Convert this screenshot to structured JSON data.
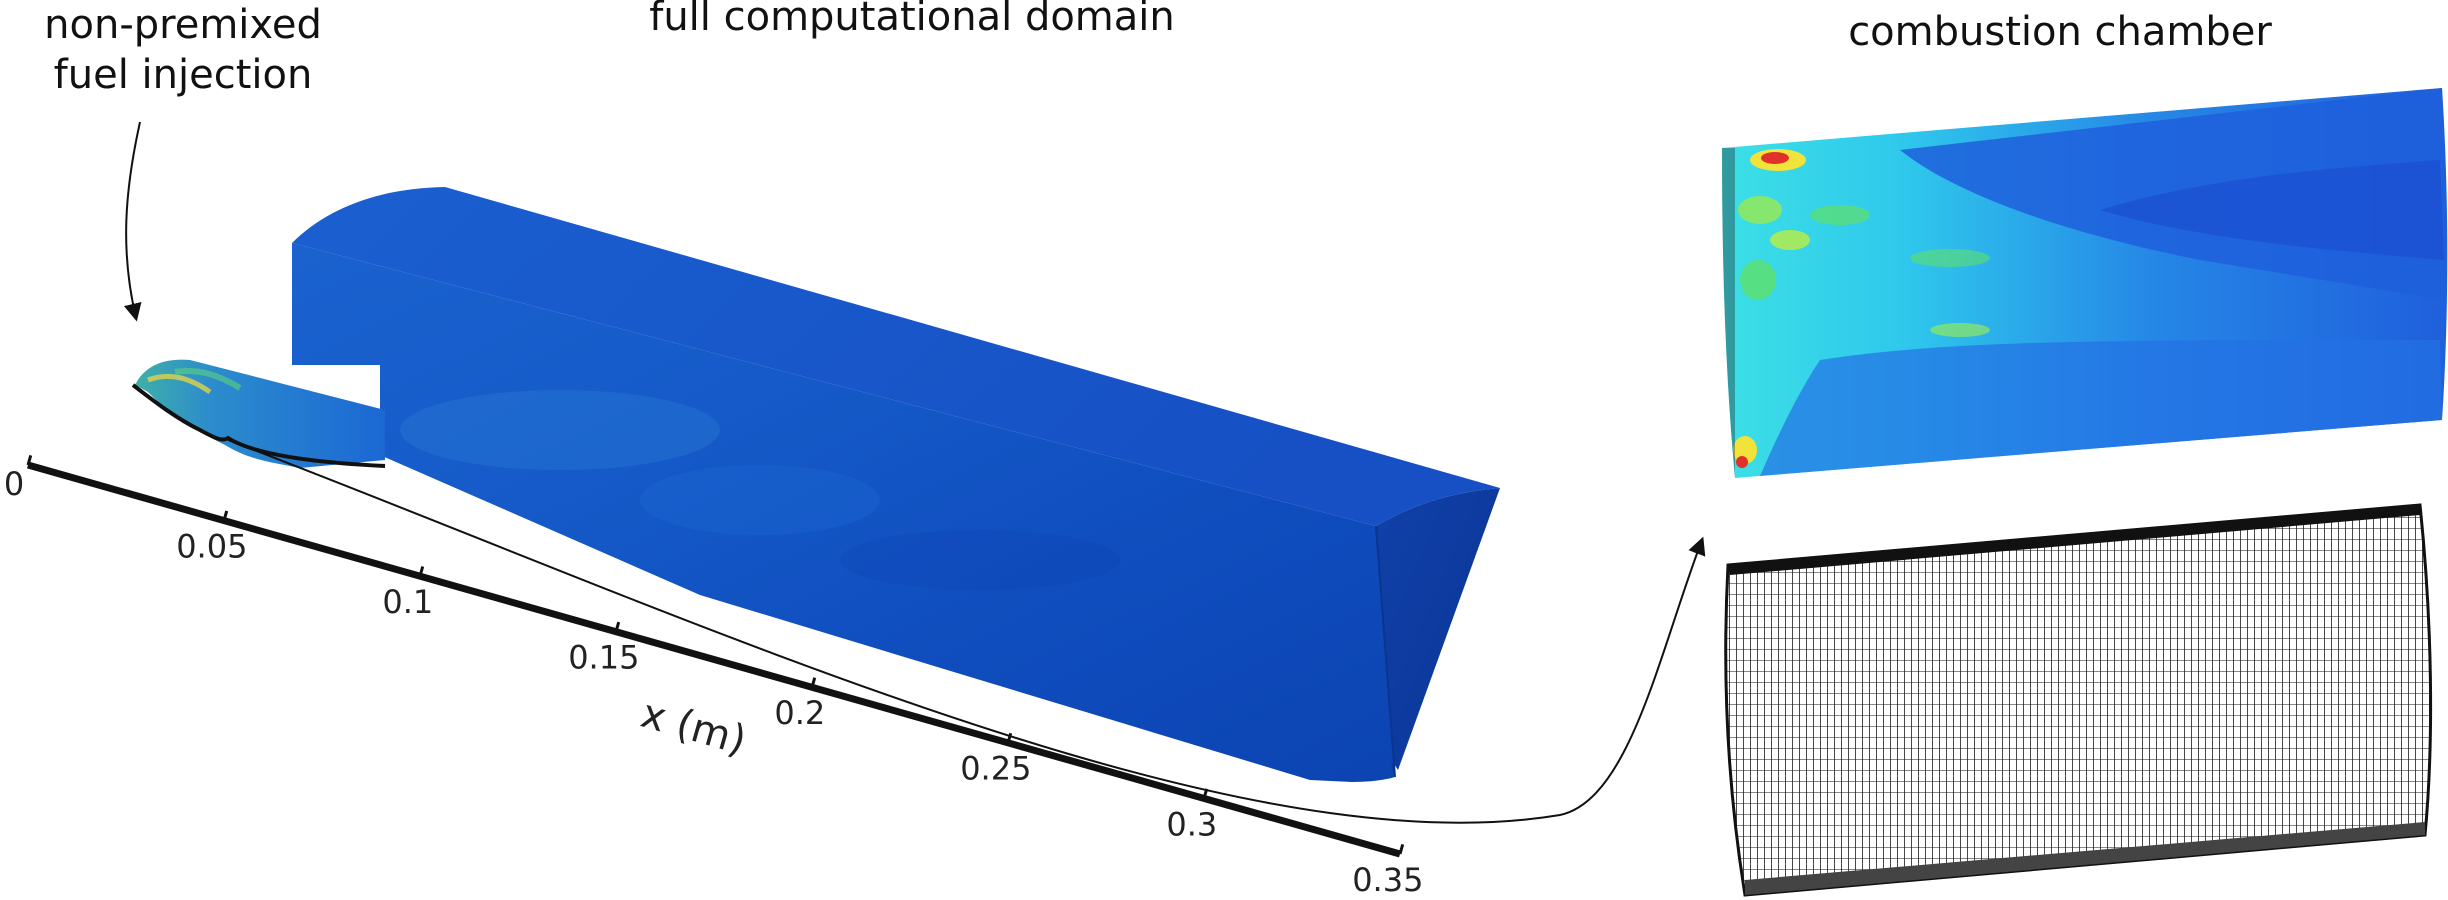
{
  "labels": {
    "fuel_injection_line1": "non-premixed",
    "fuel_injection_line2": "fuel injection",
    "full_domain": "full computational domain",
    "chamber": "combustion chamber"
  },
  "axis": {
    "label": "x (m)",
    "ticks": [
      "0",
      "0.05",
      "0.1",
      "0.15",
      "0.2",
      "0.25",
      "0.3",
      "0.35"
    ],
    "tick_values": [
      0,
      0.05,
      0.1,
      0.15,
      0.2,
      0.25,
      0.3,
      0.35
    ],
    "range": [
      0,
      0.35
    ]
  },
  "colors": {
    "domain_dark": "#0b3fae",
    "domain_mid": "#1456c8",
    "domain_light": "#1e6ee0",
    "field_cyan": "#21d4f0",
    "field_green": "#5fe06a",
    "field_yellow": "#f2e33a",
    "field_red": "#e0312a",
    "mesh_line": "#1c1c1c"
  }
}
